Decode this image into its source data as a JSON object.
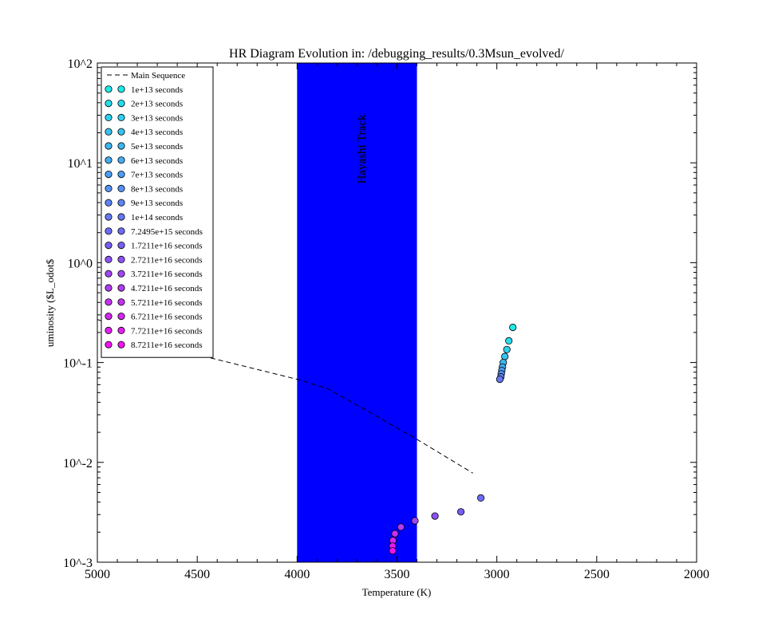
{
  "chart_data": {
    "type": "scatter",
    "title": "HR Diagram Evolution in: /debugging_results/0.3Msun_evolved/",
    "xlabel": "Temperature (K)",
    "ylabel": "uminosity ($L_odot$",
    "xlim": [
      5000,
      2000
    ],
    "x_inverted": true,
    "ylim": [
      0.001,
      100
    ],
    "y_scale": "log",
    "x_ticks": [
      5000,
      4500,
      4000,
      3500,
      3000,
      2500,
      2000
    ],
    "x_tick_labels": [
      "5000",
      "4500",
      "4000",
      "3500",
      "3000",
      "2500",
      "2000"
    ],
    "y_ticks": [
      0.001,
      0.01,
      0.1,
      1,
      10,
      100
    ],
    "y_tick_labels": [
      "10^-3",
      "10^-2",
      "10^-1",
      "10^0",
      "10^1",
      "10^2"
    ],
    "grid": false,
    "legend_position": "top-left",
    "band": {
      "label": "Hayashi Track",
      "x_range": [
        4000,
        3400
      ],
      "color": "#0000ff"
    },
    "main_sequence": {
      "name": "Main Sequence",
      "style": "dashed",
      "color": "#000000",
      "points": [
        {
          "x": 5000,
          "y": 0.27
        },
        {
          "x": 4500,
          "y": 0.12
        },
        {
          "x": 4000,
          "y": 0.068
        },
        {
          "x": 3850,
          "y": 0.055
        },
        {
          "x": 3650,
          "y": 0.033
        },
        {
          "x": 3400,
          "y": 0.017
        },
        {
          "x": 3120,
          "y": 0.0078
        }
      ]
    },
    "series": [
      {
        "name": "1e+13 seconds",
        "color": "#1ee9e9",
        "x": 2920,
        "y": 0.225
      },
      {
        "name": "2e+13 seconds",
        "color": "#26dcec",
        "x": 2940,
        "y": 0.165
      },
      {
        "name": "3e+13 seconds",
        "color": "#2ed0ee",
        "x": 2950,
        "y": 0.135
      },
      {
        "name": "4e+13 seconds",
        "color": "#36c3ef",
        "x": 2960,
        "y": 0.115
      },
      {
        "name": "5e+13 seconds",
        "color": "#3db7f0",
        "x": 2968,
        "y": 0.1
      },
      {
        "name": "6e+13 seconds",
        "color": "#45aaf1",
        "x": 2972,
        "y": 0.09
      },
      {
        "name": "7e+13 seconds",
        "color": "#4d9ef2",
        "x": 2975,
        "y": 0.083
      },
      {
        "name": "8e+13 seconds",
        "color": "#5591f3",
        "x": 2978,
        "y": 0.077
      },
      {
        "name": "9e+13 seconds",
        "color": "#5d85f4",
        "x": 2980,
        "y": 0.072
      },
      {
        "name": "1e+14 seconds",
        "color": "#6578f5",
        "x": 2985,
        "y": 0.068
      },
      {
        "name": "7.2495e+15 seconds",
        "color": "#6d6cf5",
        "x": 3080,
        "y": 0.0044
      },
      {
        "name": "1.7211e+16 seconds",
        "color": "#7560f5",
        "x": 3180,
        "y": 0.0032
      },
      {
        "name": "2.7211e+16 seconds",
        "color": "#8d52f4",
        "x": 3310,
        "y": 0.0029
      },
      {
        "name": "3.7211e+16 seconds",
        "color": "#a046f3",
        "x": 3410,
        "y": 0.0026
      },
      {
        "name": "4.7211e+16 seconds",
        "color": "#b23cf2",
        "x": 3480,
        "y": 0.00225
      },
      {
        "name": "5.7211e+16 seconds",
        "color": "#c332f1",
        "x": 3510,
        "y": 0.00193
      },
      {
        "name": "6.7211e+16 seconds",
        "color": "#d328f0",
        "x": 3520,
        "y": 0.00165
      },
      {
        "name": "7.7211e+16 seconds",
        "color": "#e21ef0",
        "x": 3522,
        "y": 0.00145
      },
      {
        "name": "8.7211e+16 seconds",
        "color": "#f014ef",
        "x": 3522,
        "y": 0.0013
      }
    ]
  }
}
